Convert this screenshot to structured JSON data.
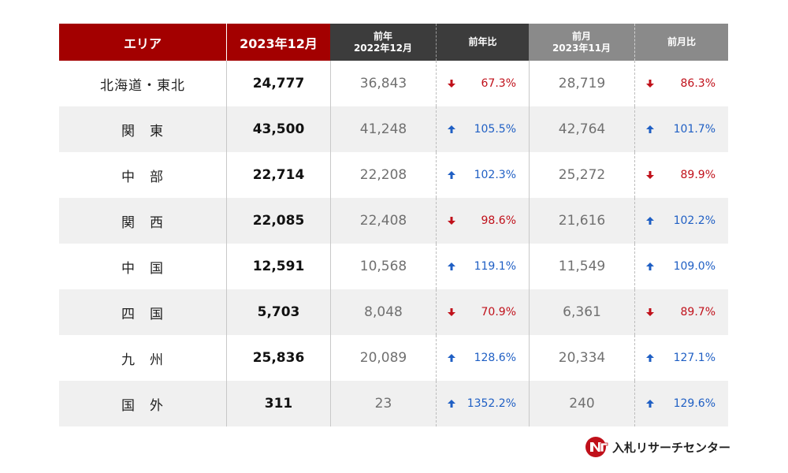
{
  "header": {
    "area": "エリア",
    "current": "2023年12月",
    "prev_year_line1": "前年",
    "prev_year_line2": "2022年12月",
    "yoy": "前年比",
    "prev_month_line1": "前月",
    "prev_month_line2": "2023年11月",
    "mom": "前月比"
  },
  "rows": [
    {
      "area": "北海道・東北",
      "current": "24,777",
      "prev_year": "36,843",
      "yoy": "67.3%",
      "yoy_dir": "down",
      "prev_month": "28,719",
      "mom": "86.3%",
      "mom_dir": "down"
    },
    {
      "area": "関　東",
      "current": "43,500",
      "prev_year": "41,248",
      "yoy": "105.5%",
      "yoy_dir": "up",
      "prev_month": "42,764",
      "mom": "101.7%",
      "mom_dir": "up"
    },
    {
      "area": "中　部",
      "current": "22,714",
      "prev_year": "22,208",
      "yoy": "102.3%",
      "yoy_dir": "up",
      "prev_month": "25,272",
      "mom": "89.9%",
      "mom_dir": "down"
    },
    {
      "area": "関　西",
      "current": "22,085",
      "prev_year": "22,408",
      "yoy": "98.6%",
      "yoy_dir": "down",
      "prev_month": "21,616",
      "mom": "102.2%",
      "mom_dir": "up"
    },
    {
      "area": "中　国",
      "current": "12,591",
      "prev_year": "10,568",
      "yoy": "119.1%",
      "yoy_dir": "up",
      "prev_month": "11,549",
      "mom": "109.0%",
      "mom_dir": "up"
    },
    {
      "area": "四　国",
      "current": "5,703",
      "prev_year": "8,048",
      "yoy": "70.9%",
      "yoy_dir": "down",
      "prev_month": "6,361",
      "mom": "89.7%",
      "mom_dir": "down"
    },
    {
      "area": "九　州",
      "current": "25,836",
      "prev_year": "20,089",
      "yoy": "128.6%",
      "yoy_dir": "up",
      "prev_month": "20,334",
      "mom": "127.1%",
      "mom_dir": "up"
    },
    {
      "area": "国　外",
      "current": "311",
      "prev_year": "23",
      "yoy": "1352.2%",
      "yoy_dir": "up",
      "prev_month": "240",
      "mom": "129.6%",
      "mom_dir": "up"
    }
  ],
  "logo": {
    "text": "入札リサーチセンター"
  },
  "colors": {
    "header_red": "#a30000",
    "header_dark": "#3c3c3c",
    "header_gray": "#8a8a8a",
    "up": "#1f5fc4",
    "down": "#c0101a",
    "alt_row": "#f0f0f0"
  }
}
